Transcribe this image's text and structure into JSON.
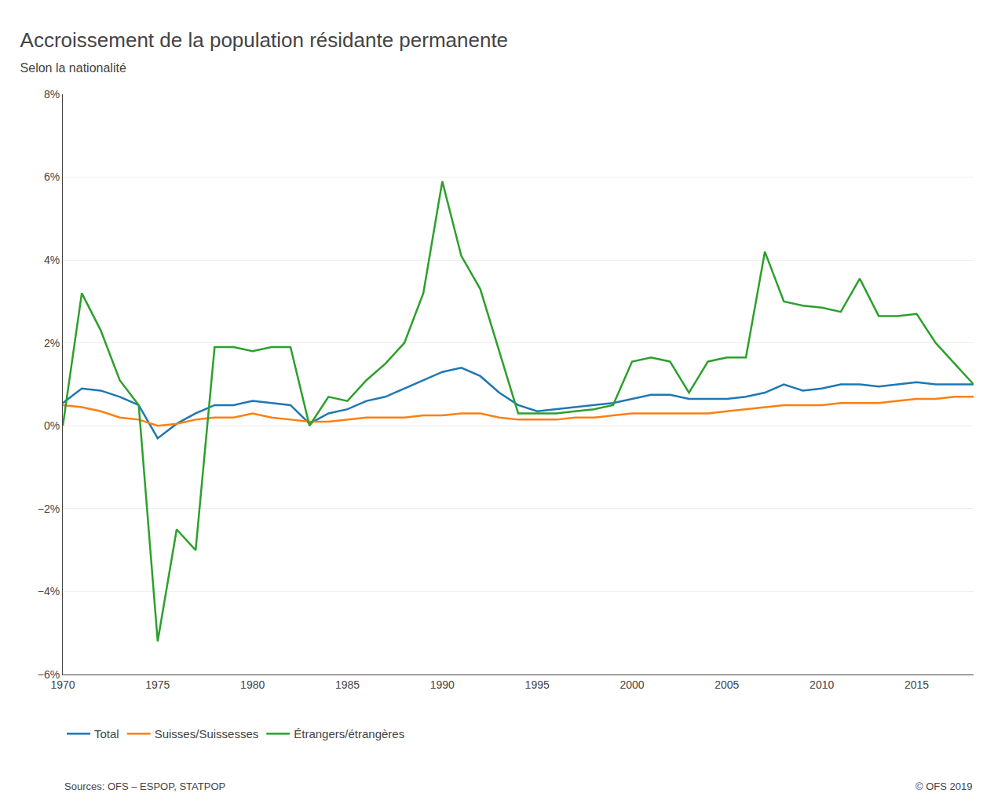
{
  "chart_data": {
    "type": "line",
    "title": "Accroissement de la population résidante permanente",
    "subtitle": "Selon la nationalité",
    "annotations": [
      "Sources: OFS – ESPOP, STATPOP",
      "© OFS 2019"
    ],
    "x": [
      1970,
      1971,
      1972,
      1973,
      1974,
      1975,
      1976,
      1977,
      1978,
      1979,
      1980,
      1981,
      1982,
      1983,
      1984,
      1985,
      1986,
      1987,
      1988,
      1989,
      1990,
      1991,
      1992,
      1993,
      1994,
      1995,
      1996,
      1997,
      1998,
      1999,
      2000,
      2001,
      2002,
      2003,
      2004,
      2005,
      2006,
      2007,
      2008,
      2009,
      2010,
      2011,
      2012,
      2013,
      2014,
      2015,
      2016,
      2017,
      2018
    ],
    "series": [
      {
        "name": "Total",
        "values": [
          0.55,
          0.9,
          0.85,
          0.7,
          0.5,
          -0.3,
          0.05,
          0.3,
          0.5,
          0.5,
          0.6,
          0.55,
          0.5,
          0.05,
          0.3,
          0.4,
          0.6,
          0.7,
          0.9,
          1.1,
          1.3,
          1.4,
          1.2,
          0.8,
          0.5,
          0.35,
          0.4,
          0.45,
          0.5,
          0.55,
          0.65,
          0.75,
          0.75,
          0.65,
          0.65,
          0.65,
          0.7,
          0.8,
          1.0,
          0.85,
          0.9,
          1.0,
          1.0,
          0.95,
          1.0,
          1.05,
          1.0,
          1.0,
          1.0
        ]
      },
      {
        "name": "Suisses/Suissesses",
        "values": [
          0.5,
          0.45,
          0.35,
          0.2,
          0.15,
          0.0,
          0.05,
          0.15,
          0.2,
          0.2,
          0.3,
          0.2,
          0.15,
          0.1,
          0.1,
          0.15,
          0.2,
          0.2,
          0.2,
          0.25,
          0.25,
          0.3,
          0.3,
          0.2,
          0.15,
          0.15,
          0.15,
          0.2,
          0.2,
          0.25,
          0.3,
          0.3,
          0.3,
          0.3,
          0.3,
          0.35,
          0.4,
          0.45,
          0.5,
          0.5,
          0.5,
          0.55,
          0.55,
          0.55,
          0.6,
          0.65,
          0.65,
          0.7,
          0.7
        ]
      },
      {
        "name": "Étrangers/étrangères",
        "values": [
          0.0,
          3.2,
          2.3,
          1.1,
          0.5,
          -5.2,
          -2.5,
          -3.0,
          1.9,
          1.9,
          1.8,
          1.9,
          1.9,
          0.0,
          0.7,
          0.6,
          1.1,
          1.5,
          2.0,
          3.2,
          5.9,
          4.1,
          3.3,
          1.8,
          0.3,
          0.3,
          0.3,
          0.35,
          0.4,
          0.5,
          1.55,
          1.65,
          1.55,
          0.8,
          1.55,
          1.65,
          1.65,
          4.2,
          3.0,
          2.9,
          2.85,
          2.75,
          3.55,
          2.65,
          2.65,
          2.7,
          2.0,
          1.5,
          1.0
        ]
      }
    ],
    "xlim": [
      1970,
      2018
    ],
    "xticks": [
      1970,
      1975,
      1980,
      1985,
      1990,
      1995,
      2000,
      2005,
      2010,
      2015
    ],
    "ylim": [
      -6,
      8
    ],
    "yticks": [
      {
        "value": -6,
        "label": "−6%"
      },
      {
        "value": -4,
        "label": "−4%"
      },
      {
        "value": -2,
        "label": "−2%"
      },
      {
        "value": 0,
        "label": "0%"
      },
      {
        "value": 2,
        "label": "2%"
      },
      {
        "value": 4,
        "label": "4%"
      },
      {
        "value": 6,
        "label": "6%"
      },
      {
        "value": 8,
        "label": "8%"
      }
    ],
    "grid": true,
    "legend": "bottom"
  }
}
